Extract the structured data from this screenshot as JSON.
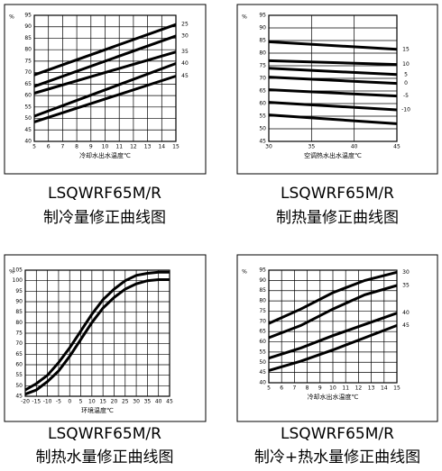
{
  "chart_data": [
    {
      "type": "line",
      "title": "LSQWRF65M/R",
      "subtitle": "制冷量修正曲线图",
      "ylabel": "%",
      "xlabel": "冷却水出水温度℃",
      "x": [
        5,
        15
      ],
      "xlim": [
        5,
        15
      ],
      "xticks": [
        5,
        6,
        7,
        8,
        9,
        10,
        11,
        12,
        13,
        14,
        15
      ],
      "ylim": [
        40,
        95
      ],
      "yticks": [
        40,
        45,
        50,
        55,
        60,
        65,
        70,
        75,
        80,
        85,
        90,
        95
      ],
      "grid": true,
      "color": "#000000",
      "series": [
        {
          "name": "25",
          "values": [
            69,
            91
          ]
        },
        {
          "name": "30",
          "values": [
            64,
            86
          ]
        },
        {
          "name": "35",
          "values": [
            61,
            79
          ]
        },
        {
          "name": "40",
          "values": [
            51,
            74
          ]
        },
        {
          "name": "45",
          "values": [
            48.5,
            68.5
          ]
        }
      ]
    },
    {
      "type": "line",
      "title": "LSQWRF65M/R",
      "subtitle": "制热量修正曲线图",
      "ylabel": "%",
      "xlabel": "空调热水出水温度℃",
      "x": [
        30,
        45
      ],
      "xlim": [
        30,
        45
      ],
      "xticks": [
        30,
        35,
        40,
        45
      ],
      "ylim": [
        45,
        95
      ],
      "yticks": [
        45,
        50,
        55,
        60,
        65,
        70,
        75,
        80,
        85,
        90,
        95
      ],
      "grid": true,
      "color": "#000000",
      "series": [
        {
          "name": "15",
          "values": [
            84.5,
            81.5
          ]
        },
        {
          "name": "10",
          "values": [
            77,
            75.5
          ]
        },
        {
          "name": "5",
          "values": [
            74,
            71.5
          ]
        },
        {
          "name": "0",
          "values": [
            70.5,
            68
          ]
        },
        {
          "name": "-5",
          "values": [
            65.5,
            63
          ]
        },
        {
          "name": "-10",
          "values": [
            60.5,
            57.5
          ]
        },
        {
          "values": [
            55.5,
            52
          ]
        }
      ]
    },
    {
      "type": "line",
      "title": "LSQWRF65M/R",
      "subtitle": "制热水量修正曲线图",
      "ylabel": "%",
      "xlabel": "环境温度℃",
      "x": [
        -20,
        -15,
        -10,
        -5,
        0,
        5,
        10,
        15,
        20,
        25,
        30,
        35,
        40,
        45
      ],
      "xlim": [
        -20,
        45
      ],
      "xticks": [
        -20,
        -15,
        -10,
        -5,
        0,
        5,
        10,
        15,
        20,
        25,
        30,
        35,
        40,
        45
      ],
      "ylim": [
        45,
        105
      ],
      "yticks": [
        45,
        50,
        55,
        60,
        65,
        70,
        75,
        80,
        85,
        90,
        95,
        100,
        105
      ],
      "grid": true,
      "color": "#000000",
      "series": [
        {
          "values": [
            48,
            51,
            55,
            61,
            68,
            76,
            84,
            91,
            96,
            100,
            102.5,
            103.5,
            104,
            104
          ]
        },
        {
          "values": [
            46,
            48,
            52,
            57,
            64,
            72,
            80,
            87,
            92,
            96,
            98.5,
            100,
            100.5,
            100.5
          ]
        }
      ]
    },
    {
      "type": "line",
      "title": "LSQWRF65M/R",
      "subtitle": "制冷+热水量修正曲线图",
      "ylabel": "%",
      "xlabel": "冷却水出水温度℃",
      "x": [
        5,
        7.5,
        10,
        12.5,
        15
      ],
      "xlim": [
        5,
        15
      ],
      "xticks": [
        5,
        6,
        7,
        8,
        9,
        10,
        11,
        12,
        13,
        14,
        15
      ],
      "ylim": [
        40,
        95
      ],
      "yticks": [
        40,
        45,
        50,
        55,
        60,
        65,
        70,
        75,
        80,
        85,
        90,
        95
      ],
      "grid": true,
      "color": "#000000",
      "series": [
        {
          "name": "30",
          "values": [
            69,
            76,
            84,
            90,
            94
          ]
        },
        {
          "name": "35",
          "values": [
            62,
            68,
            76,
            83,
            87.5
          ]
        },
        {
          "name": "40",
          "values": [
            52,
            57,
            63,
            68.5,
            74
          ]
        },
        {
          "name": "45",
          "values": [
            46,
            50.5,
            56,
            62,
            68
          ]
        }
      ]
    }
  ]
}
